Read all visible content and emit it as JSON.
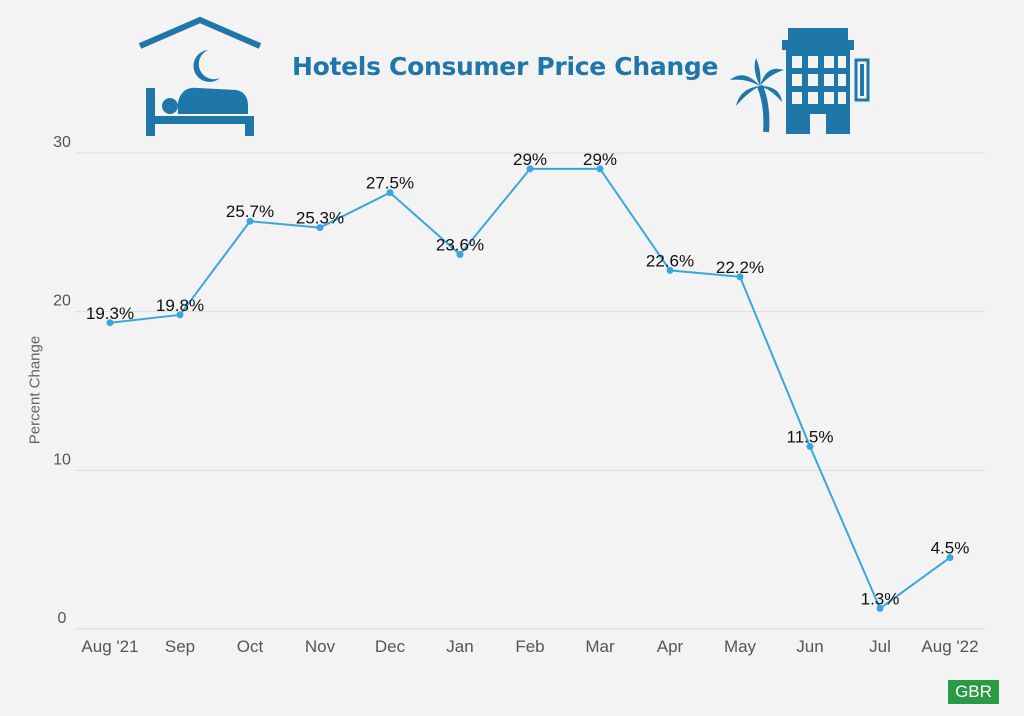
{
  "title": "Hotels Consumer Price Change",
  "brand": "GBR",
  "colors": {
    "accent": "#1e77a8",
    "line": "#3aa6dc",
    "grid": "#dddddd",
    "brand": "#2a9a47"
  },
  "icons": [
    "sleeping-in-bed-icon",
    "hotel-building-palm-icon"
  ],
  "chart_data": {
    "type": "line",
    "title": "Hotels Consumer Price Change",
    "xlabel": "",
    "ylabel": "Percent Change",
    "ylim": [
      0,
      30
    ],
    "yticks": [
      0,
      10,
      20,
      30
    ],
    "grid": true,
    "categories": [
      "Aug '21",
      "Sep",
      "Oct",
      "Nov",
      "Dec",
      "Jan",
      "Feb",
      "Mar",
      "Apr",
      "May",
      "Jun",
      "Jul",
      "Aug '22"
    ],
    "values": [
      19.3,
      19.8,
      25.7,
      25.3,
      27.5,
      23.6,
      29,
      29,
      22.6,
      22.2,
      11.5,
      1.3,
      4.5
    ],
    "data_labels": [
      "19.3%",
      "19.8%",
      "25.7%",
      "25.3%",
      "27.5%",
      "23.6%",
      "29%",
      "29%",
      "22.6%",
      "22.2%",
      "11.5%",
      "1.3%",
      "4.5%"
    ]
  }
}
